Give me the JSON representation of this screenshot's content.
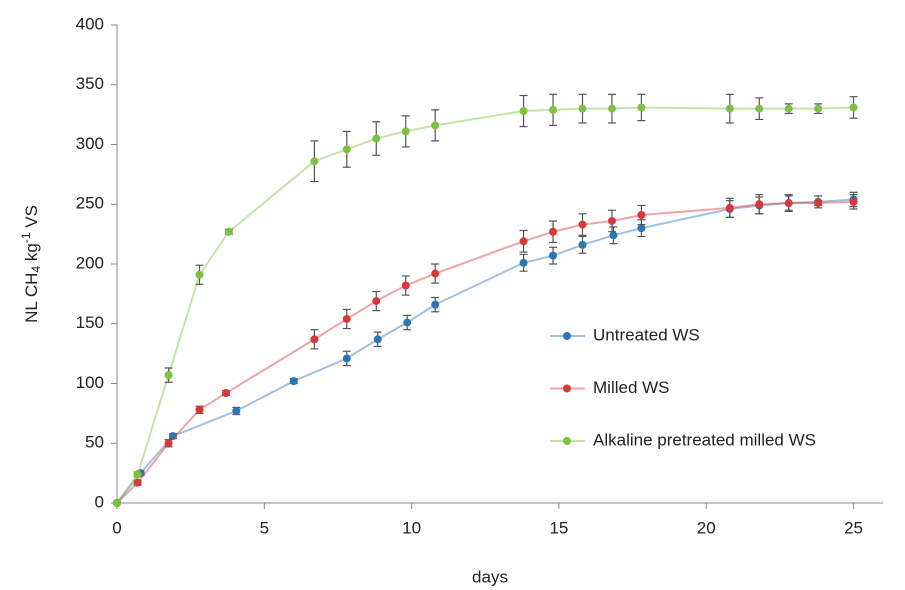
{
  "chart_data": {
    "type": "line",
    "y_label": [
      "NL CH",
      "4",
      " kg",
      "-1",
      " VS"
    ],
    "x_label": "days",
    "xlim": [
      0,
      26
    ],
    "xticks": [
      0,
      5,
      10,
      15,
      20,
      25
    ],
    "ylim": [
      0,
      400
    ],
    "yticks": [
      0,
      50,
      100,
      150,
      200,
      250,
      300,
      350,
      400
    ],
    "legend": "right",
    "series": [
      {
        "name": "Untreated WS",
        "color": "#2e75b6",
        "x": [
          0,
          0.8,
          1.9,
          4.05,
          6,
          7.8,
          8.85,
          9.85,
          10.8,
          13.8,
          14.8,
          15.8,
          16.85,
          17.8,
          20.8,
          21.8,
          22.8,
          23.8,
          25
        ],
        "values": [
          0,
          25,
          56,
          77,
          102,
          121,
          137,
          151,
          166,
          201,
          207,
          216,
          224,
          230,
          246,
          249,
          251,
          252,
          254
        ],
        "errors": [
          0,
          2,
          2,
          3,
          2,
          6,
          6,
          6,
          6,
          7,
          7,
          7,
          7,
          7,
          7,
          7,
          6,
          5,
          6
        ]
      },
      {
        "name": "Milled WS",
        "color": "#d9383a",
        "x": [
          0,
          0.7,
          1.75,
          2.8,
          3.7,
          6.7,
          7.8,
          8.8,
          9.8,
          10.8,
          13.8,
          14.8,
          15.8,
          16.8,
          17.8,
          20.8,
          21.8,
          22.8,
          23.8,
          25
        ],
        "values": [
          0,
          17,
          50,
          78,
          92,
          137,
          154,
          169,
          182,
          192,
          219,
          227,
          233,
          236,
          241,
          247,
          250,
          251,
          251,
          252
        ],
        "errors": [
          0,
          2,
          3,
          3,
          2,
          8,
          8,
          8,
          8,
          8,
          9,
          9,
          9,
          9,
          8,
          8,
          8,
          7,
          2,
          6
        ]
      },
      {
        "name": "Alkaline pretreated milled WS",
        "color": "#7cc242",
        "x": [
          0,
          0.7,
          1.75,
          2.8,
          3.8,
          6.7,
          7.8,
          8.8,
          9.8,
          10.8,
          13.8,
          14.8,
          15.8,
          16.8,
          17.8,
          20.8,
          21.8,
          22.8,
          23.8,
          25
        ],
        "values": [
          0,
          24,
          107,
          191,
          227,
          286,
          296,
          305,
          311,
          316,
          328,
          329,
          330,
          330,
          331,
          330,
          330,
          330,
          330,
          331
        ],
        "errors": [
          0,
          2,
          6,
          8,
          2,
          17,
          15,
          14,
          13,
          13,
          13,
          13,
          12,
          12,
          11,
          12,
          9,
          4,
          4,
          9
        ]
      }
    ]
  }
}
